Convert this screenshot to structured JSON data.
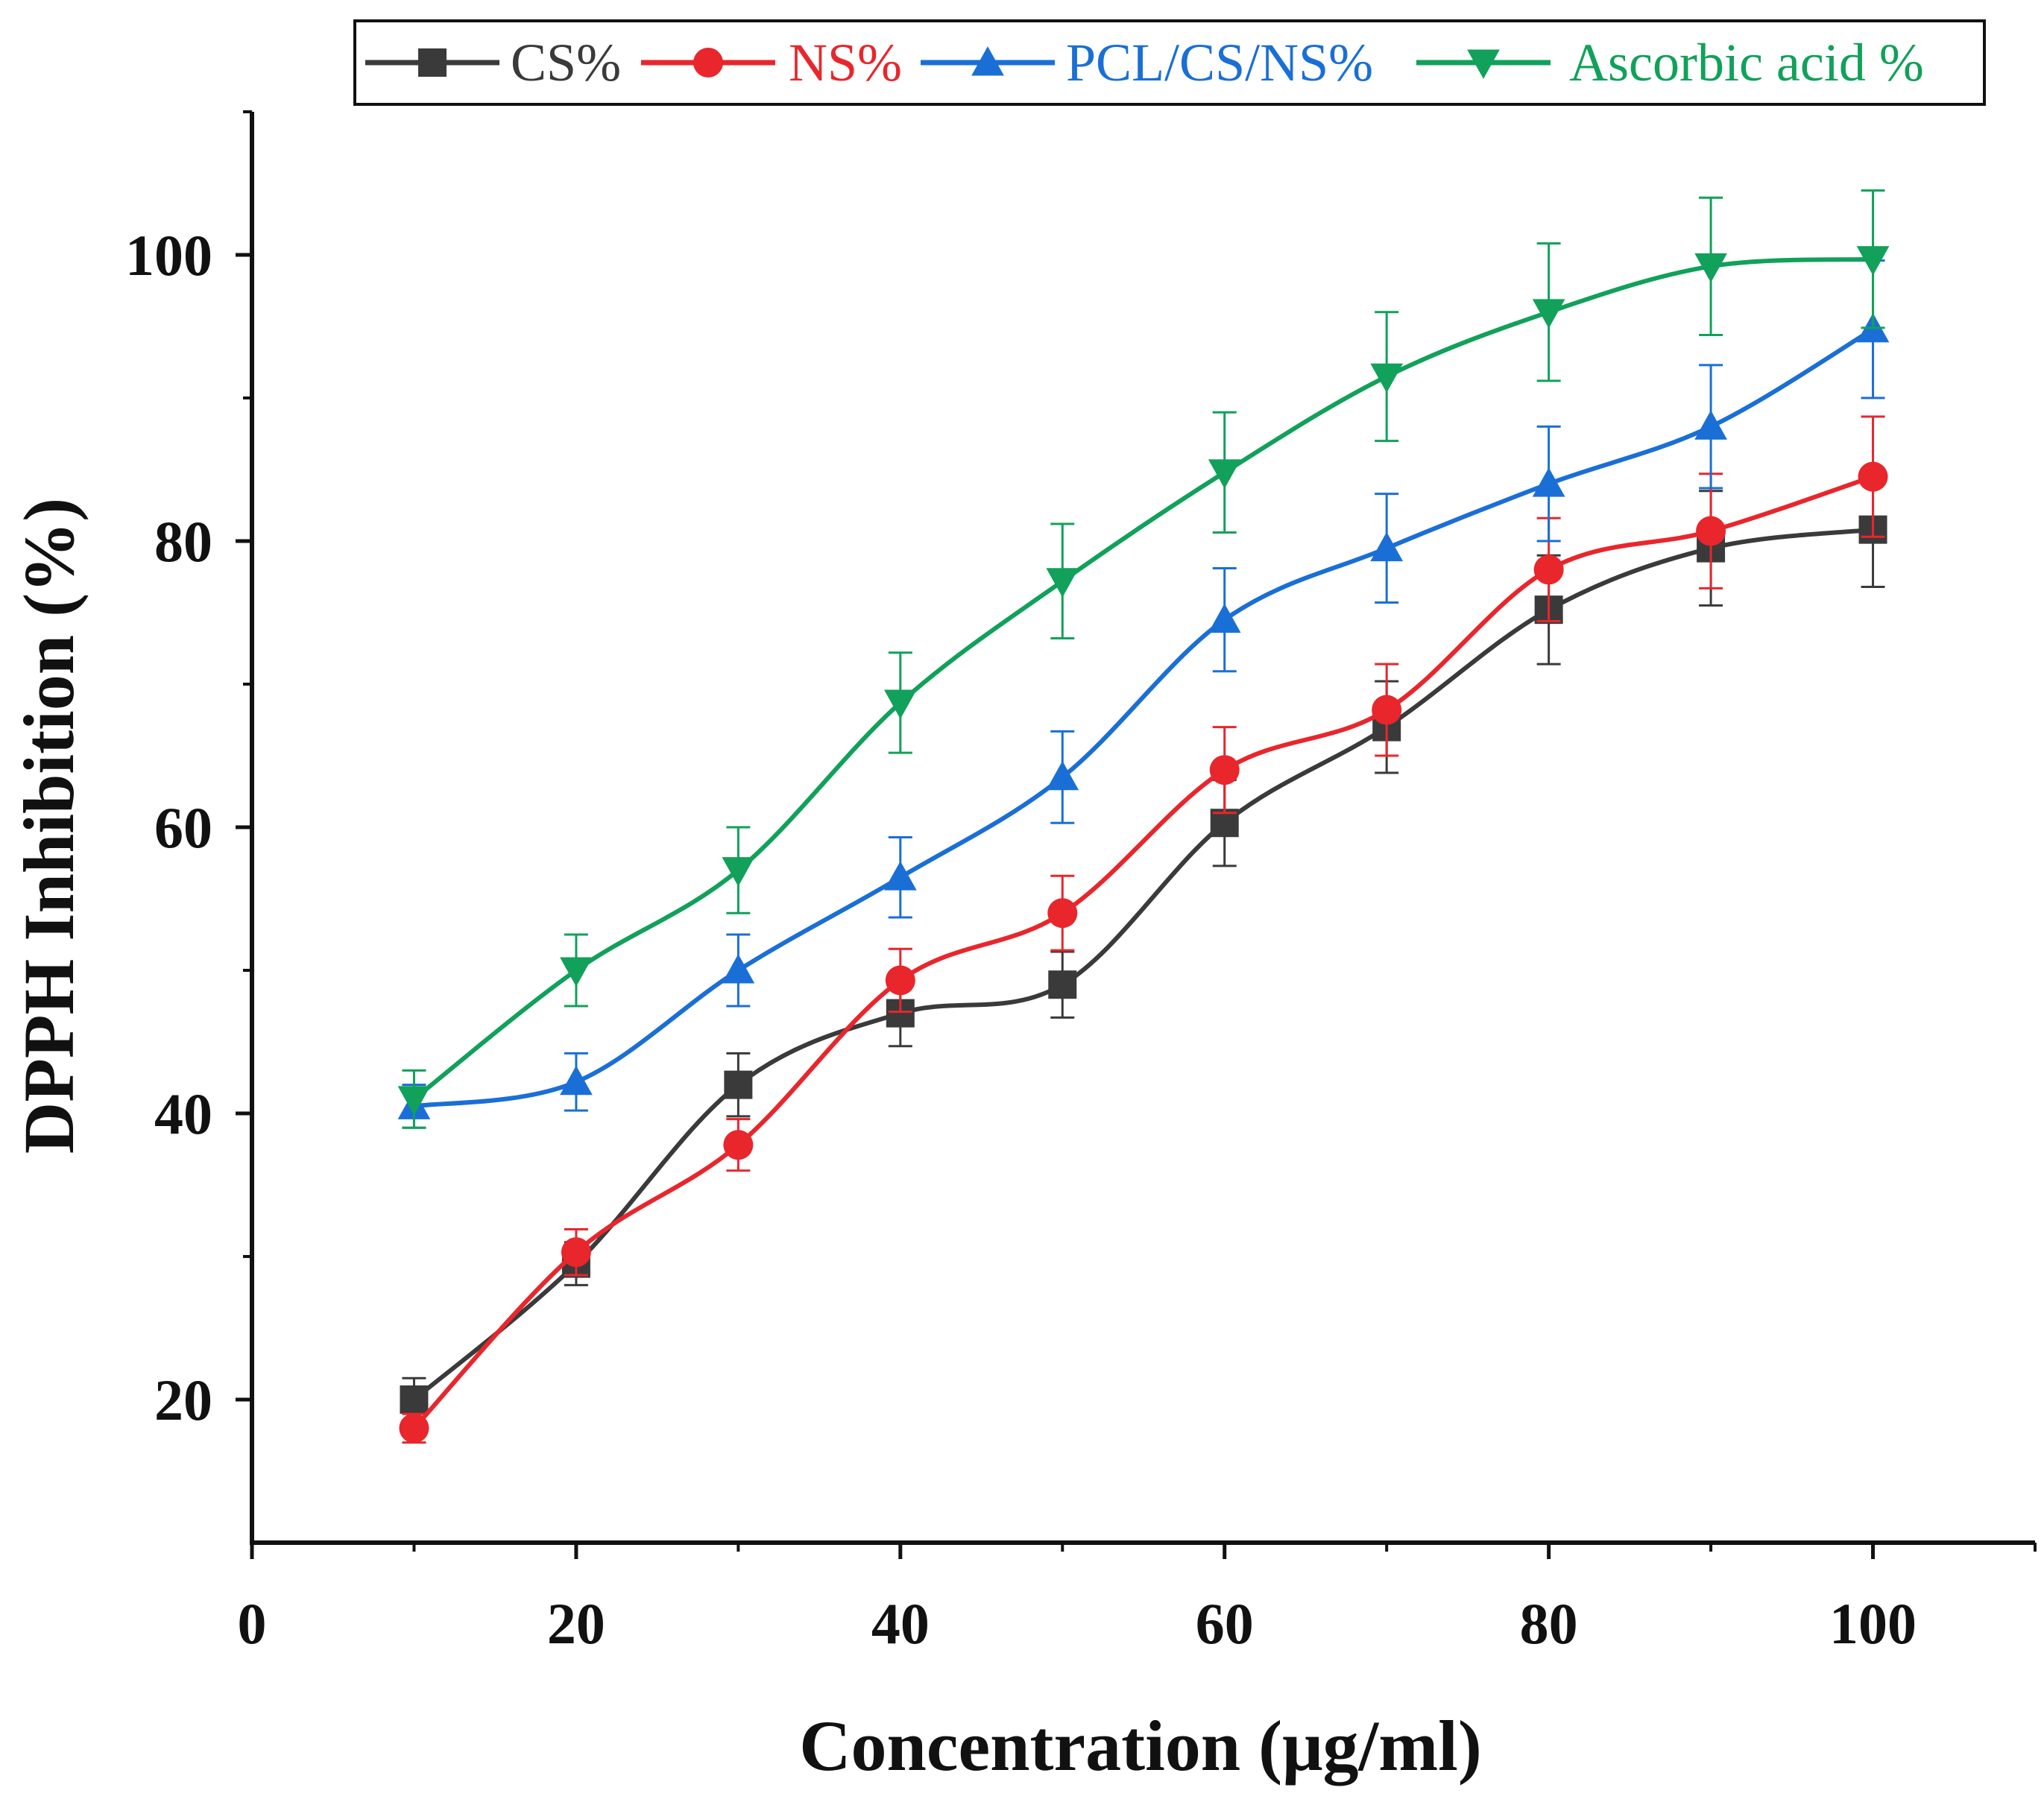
{
  "chart_data": {
    "type": "line",
    "title": "",
    "xlabel": "Concentration (μg/ml)",
    "ylabel": "DPPH Inhibition (%)",
    "xlim": [
      0,
      110
    ],
    "ylim": [
      10,
      110
    ],
    "x_ticks": [
      "0",
      "20",
      "40",
      "60",
      "80",
      "100"
    ],
    "y_ticks": [
      "20",
      "40",
      "60",
      "80",
      "100"
    ],
    "grid": false,
    "legend_position": "top",
    "x": [
      10,
      20,
      30,
      40,
      50,
      60,
      70,
      80,
      90,
      100
    ],
    "series": [
      {
        "name": "CS%",
        "color": "#3a3a3a",
        "marker": "square",
        "values": [
          20,
          29.5,
          42,
          47,
          49,
          60.3,
          67,
          75.2,
          79.5,
          80.8
        ],
        "errors": [
          1.5,
          1.5,
          2.2,
          2.3,
          2.3,
          3,
          3.2,
          3.8,
          4,
          4
        ]
      },
      {
        "name": "NS%",
        "color": "#e8262c",
        "marker": "circle",
        "values": [
          18,
          30.3,
          37.8,
          49.3,
          54,
          64,
          68.2,
          78,
          80.7,
          84.5
        ],
        "errors": [
          1,
          1.6,
          1.8,
          2.2,
          2.6,
          3,
          3.2,
          3.6,
          4,
          4.2
        ]
      },
      {
        "name": "PCL/CS/NS%",
        "color": "#1a6fd6",
        "marker": "triangle-up",
        "values": [
          40.5,
          42.2,
          50,
          56.5,
          63.5,
          74.5,
          79.5,
          84,
          88,
          94.8
        ],
        "errors": [
          1.5,
          2,
          2.5,
          2.8,
          3.2,
          3.6,
          3.8,
          4,
          4.3,
          4.8
        ]
      },
      {
        "name": "Ascorbic acid %",
        "color": "#11a15a",
        "marker": "triangle-down",
        "values": [
          41,
          50,
          57,
          68.7,
          77.2,
          84.8,
          91.5,
          96,
          99.2,
          99.7
        ],
        "errors": [
          2,
          2.5,
          3,
          3.5,
          4,
          4.2,
          4.5,
          4.8,
          4.8,
          4.8
        ]
      }
    ]
  }
}
